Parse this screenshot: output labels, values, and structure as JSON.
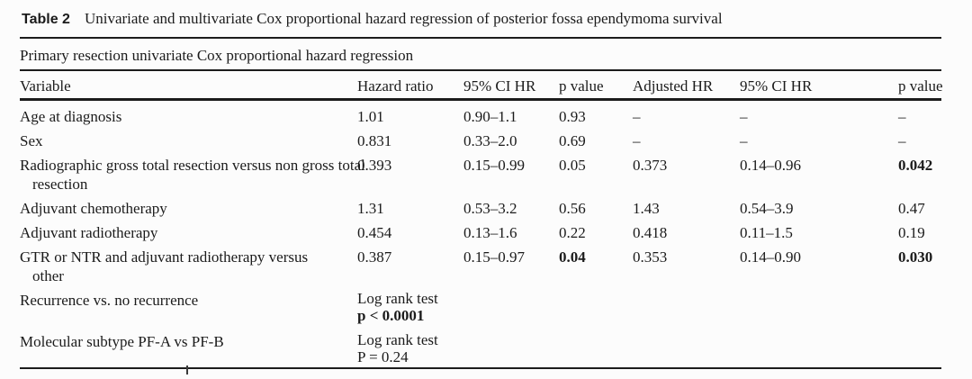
{
  "title": {
    "label": "Table 2",
    "caption": "Univariate and multivariate Cox proportional hazard regression of posterior fossa ependymoma survival"
  },
  "section_header": "Primary resection univariate Cox proportional hazard regression",
  "columns": [
    "Variable",
    "Hazard ratio",
    "95% CI HR",
    "p value",
    "Adjusted HR",
    "95% CI HR",
    "p value"
  ],
  "rows": [
    {
      "variable": "Age at diagnosis",
      "hazard_ratio": "1.01",
      "ci_hr": "0.90–1.1",
      "p_value": "0.93",
      "adjusted_hr": "–",
      "adjusted_ci_hr": "–",
      "adjusted_p_value": "–"
    },
    {
      "variable": "Sex",
      "hazard_ratio": "0.831",
      "ci_hr": "0.33–2.0",
      "p_value": "0.69",
      "adjusted_hr": "–",
      "adjusted_ci_hr": "–",
      "adjusted_p_value": "–"
    },
    {
      "variable": "Radiographic gross total resection versus non gross total resection",
      "hazard_ratio": "0.393",
      "ci_hr": "0.15–0.99",
      "p_value": "0.05",
      "adjusted_hr": "0.373",
      "adjusted_ci_hr": "0.14–0.96",
      "adjusted_p_value": "0.042"
    },
    {
      "variable": "Adjuvant chemotherapy",
      "hazard_ratio": "1.31",
      "ci_hr": "0.53–3.2",
      "p_value": "0.56",
      "adjusted_hr": "1.43",
      "adjusted_ci_hr": "0.54–3.9",
      "adjusted_p_value": "0.47"
    },
    {
      "variable": "Adjuvant radiotherapy",
      "hazard_ratio": "0.454",
      "ci_hr": "0.13–1.6",
      "p_value": "0.22",
      "adjusted_hr": "0.418",
      "adjusted_ci_hr": "0.11–1.5",
      "adjusted_p_value": "0.19"
    },
    {
      "variable": "GTR or NTR and adjuvant radiotherapy versus other",
      "hazard_ratio": "0.387",
      "ci_hr": "0.15–0.97",
      "p_value": "0.04",
      "adjusted_hr": "0.353",
      "adjusted_ci_hr": "0.14–0.90",
      "adjusted_p_value": "0.030"
    }
  ],
  "log_rank_rows": [
    {
      "variable": "Recurrence vs. no recurrence",
      "test_label": "Log rank test",
      "result": "p < 0.0001"
    },
    {
      "variable": "Molecular subtype PF-A vs PF-B",
      "test_label": "Log rank test",
      "result": "P = 0.24"
    }
  ],
  "colors": {
    "text": "#1b1b1b",
    "rule": "#1c1c1c",
    "background": "#fcfcfc"
  }
}
